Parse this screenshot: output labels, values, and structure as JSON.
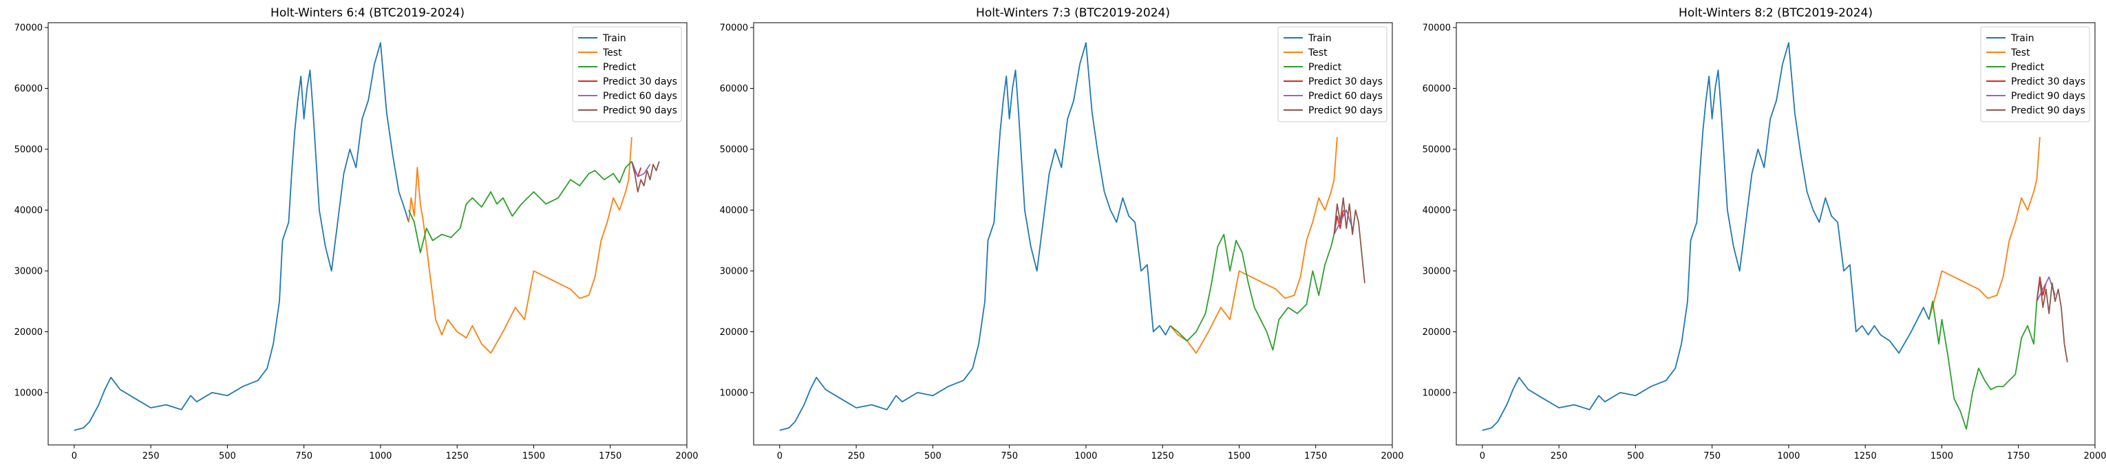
{
  "chart_data": [
    {
      "type": "line",
      "title": "Holt-Winters 6:4 (BTC2019-2024)",
      "xlim": [
        -85,
        2000
      ],
      "ylim": [
        1400,
        70800
      ],
      "xticks": [
        0,
        250,
        500,
        750,
        1000,
        1250,
        1500,
        1750,
        2000
      ],
      "yticks": [
        10000,
        20000,
        30000,
        40000,
        50000,
        60000,
        70000
      ],
      "legend_position": "top-right",
      "series": [
        {
          "name": "Train",
          "color": "#1f77b4",
          "x": [
            0,
            30,
            50,
            80,
            100,
            120,
            150,
            200,
            250,
            300,
            350,
            380,
            400,
            450,
            500,
            550,
            600,
            630,
            650,
            670,
            680,
            700,
            710,
            720,
            730,
            740,
            750,
            760,
            770,
            780,
            800,
            820,
            840,
            860,
            880,
            900,
            920,
            940,
            960,
            980,
            1000,
            1020,
            1040,
            1060,
            1080,
            1092
          ],
          "y": [
            3800,
            4200,
            5200,
            8000,
            10500,
            12500,
            10500,
            9000,
            7500,
            8000,
            7200,
            9500,
            8500,
            10000,
            9500,
            11000,
            12000,
            14000,
            18000,
            25000,
            35000,
            38000,
            46000,
            53000,
            58000,
            62000,
            55000,
            60000,
            63000,
            56000,
            40000,
            34000,
            30000,
            38000,
            46000,
            50000,
            47000,
            55000,
            58000,
            64000,
            67500,
            56000,
            49000,
            43000,
            40000,
            38000
          ]
        },
        {
          "name": "Test",
          "color": "#ff7f0e",
          "x": [
            1092,
            1100,
            1110,
            1120,
            1130,
            1140,
            1160,
            1180,
            1200,
            1220,
            1250,
            1280,
            1300,
            1330,
            1360,
            1400,
            1440,
            1470,
            1500,
            1540,
            1580,
            1620,
            1650,
            1680,
            1700,
            1720,
            1740,
            1760,
            1780,
            1800,
            1810,
            1820
          ],
          "y": [
            38000,
            42000,
            39000,
            47000,
            41000,
            38000,
            30000,
            22000,
            19500,
            22000,
            20000,
            19000,
            21000,
            18000,
            16500,
            20000,
            24000,
            22000,
            30000,
            29000,
            28000,
            27000,
            25500,
            26000,
            29000,
            35000,
            38000,
            42000,
            40000,
            43000,
            45000,
            52000
          ]
        },
        {
          "name": "Predict",
          "color": "#2ca02c",
          "x": [
            1092,
            1110,
            1130,
            1150,
            1170,
            1200,
            1230,
            1260,
            1280,
            1300,
            1330,
            1360,
            1380,
            1400,
            1430,
            1460,
            1500,
            1540,
            1580,
            1620,
            1650,
            1680,
            1700,
            1730,
            1760,
            1780,
            1800,
            1820
          ],
          "y": [
            40000,
            38000,
            33000,
            37000,
            35000,
            36000,
            35500,
            37000,
            41000,
            42000,
            40500,
            43000,
            41000,
            42000,
            39000,
            41000,
            43000,
            41000,
            42000,
            45000,
            44000,
            46000,
            46500,
            45000,
            46000,
            44500,
            47000,
            48000
          ]
        },
        {
          "name": "Predict 30 days",
          "color": "#d62728",
          "x": [
            1820,
            1830,
            1840,
            1850
          ],
          "y": [
            48000,
            46500,
            45500,
            47000
          ]
        },
        {
          "name": "Predict 60 days",
          "color": "#9467bd",
          "x": [
            1820,
            1840,
            1860,
            1880
          ],
          "y": [
            48000,
            45500,
            46000,
            47500
          ]
        },
        {
          "name": "Predict 90 days",
          "color": "#8c564b",
          "x": [
            1820,
            1830,
            1840,
            1850,
            1860,
            1870,
            1880,
            1890,
            1900,
            1910
          ],
          "y": [
            48000,
            46000,
            43000,
            45000,
            44000,
            46500,
            45000,
            47500,
            46500,
            48000
          ]
        }
      ]
    },
    {
      "type": "line",
      "title": "Holt-Winters 7:3 (BTC2019-2024)",
      "xlim": [
        -85,
        2000
      ],
      "ylim": [
        1400,
        70800
      ],
      "xticks": [
        0,
        250,
        500,
        750,
        1000,
        1250,
        1500,
        1750,
        2000
      ],
      "yticks": [
        10000,
        20000,
        30000,
        40000,
        50000,
        60000,
        70000
      ],
      "legend_position": "top-right",
      "series": [
        {
          "name": "Train",
          "color": "#1f77b4",
          "x": [
            0,
            30,
            50,
            80,
            100,
            120,
            150,
            200,
            250,
            300,
            350,
            380,
            400,
            450,
            500,
            550,
            600,
            630,
            650,
            670,
            680,
            700,
            710,
            720,
            730,
            740,
            750,
            760,
            770,
            780,
            800,
            820,
            840,
            860,
            880,
            900,
            920,
            940,
            960,
            980,
            1000,
            1020,
            1040,
            1060,
            1080,
            1100,
            1120,
            1140,
            1160,
            1180,
            1200,
            1220,
            1240,
            1260,
            1275
          ],
          "y": [
            3800,
            4200,
            5200,
            8000,
            10500,
            12500,
            10500,
            9000,
            7500,
            8000,
            7200,
            9500,
            8500,
            10000,
            9500,
            11000,
            12000,
            14000,
            18000,
            25000,
            35000,
            38000,
            46000,
            53000,
            58000,
            62000,
            55000,
            60000,
            63000,
            56000,
            40000,
            34000,
            30000,
            38000,
            46000,
            50000,
            47000,
            55000,
            58000,
            64000,
            67500,
            56000,
            49000,
            43000,
            40000,
            38000,
            42000,
            39000,
            38000,
            30000,
            31000,
            20000,
            21000,
            19500,
            21000
          ]
        },
        {
          "name": "Test",
          "color": "#ff7f0e",
          "x": [
            1275,
            1300,
            1330,
            1360,
            1400,
            1440,
            1470,
            1500,
            1540,
            1580,
            1620,
            1650,
            1680,
            1700,
            1720,
            1740,
            1760,
            1780,
            1800,
            1810,
            1820
          ],
          "y": [
            21000,
            19500,
            18500,
            16500,
            20000,
            24000,
            22000,
            30000,
            29000,
            28000,
            27000,
            25500,
            26000,
            29000,
            35000,
            38000,
            42000,
            40000,
            43000,
            45000,
            52000
          ]
        },
        {
          "name": "Predict",
          "color": "#2ca02c",
          "x": [
            1275,
            1300,
            1330,
            1360,
            1390,
            1410,
            1430,
            1450,
            1470,
            1490,
            1510,
            1530,
            1550,
            1570,
            1590,
            1610,
            1630,
            1660,
            1690,
            1720,
            1740,
            1760,
            1780,
            1800,
            1810
          ],
          "y": [
            21000,
            20000,
            18500,
            20000,
            23000,
            28000,
            34000,
            36000,
            30000,
            35000,
            33000,
            28000,
            24000,
            22000,
            20000,
            17000,
            22000,
            24000,
            23000,
            24500,
            30000,
            26000,
            31000,
            34000,
            36000
          ]
        },
        {
          "name": "Predict 30 days",
          "color": "#d62728",
          "x": [
            1810,
            1820,
            1830,
            1840
          ],
          "y": [
            36000,
            39000,
            37000,
            40000
          ]
        },
        {
          "name": "Predict 60 days",
          "color": "#9467bd",
          "x": [
            1810,
            1830,
            1850,
            1870
          ],
          "y": [
            36000,
            38000,
            40000,
            37000
          ]
        },
        {
          "name": "Predict 90 days",
          "color": "#8c564b",
          "x": [
            1810,
            1820,
            1830,
            1840,
            1850,
            1860,
            1870,
            1880,
            1890,
            1900,
            1910
          ],
          "y": [
            36000,
            41000,
            38000,
            42000,
            37000,
            41000,
            36000,
            40000,
            38000,
            33000,
            28000
          ]
        }
      ]
    },
    {
      "type": "line",
      "title": "Holt-Winters 8:2 (BTC2019-2024)",
      "xlim": [
        -85,
        2000
      ],
      "ylim": [
        1400,
        70800
      ],
      "xticks": [
        0,
        250,
        500,
        750,
        1000,
        1250,
        1500,
        1750,
        2000
      ],
      "yticks": [
        10000,
        20000,
        30000,
        40000,
        50000,
        60000,
        70000
      ],
      "legend_position": "top-right",
      "series": [
        {
          "name": "Train",
          "color": "#1f77b4",
          "x": [
            0,
            30,
            50,
            80,
            100,
            120,
            150,
            200,
            250,
            300,
            350,
            380,
            400,
            450,
            500,
            550,
            600,
            630,
            650,
            670,
            680,
            700,
            710,
            720,
            730,
            740,
            750,
            760,
            770,
            780,
            800,
            820,
            840,
            860,
            880,
            900,
            920,
            940,
            960,
            980,
            1000,
            1020,
            1040,
            1060,
            1080,
            1100,
            1120,
            1140,
            1160,
            1180,
            1200,
            1220,
            1240,
            1260,
            1280,
            1300,
            1330,
            1360,
            1400,
            1440,
            1458
          ],
          "y": [
            3800,
            4200,
            5200,
            8000,
            10500,
            12500,
            10500,
            9000,
            7500,
            8000,
            7200,
            9500,
            8500,
            10000,
            9500,
            11000,
            12000,
            14000,
            18000,
            25000,
            35000,
            38000,
            46000,
            53000,
            58000,
            62000,
            55000,
            60000,
            63000,
            56000,
            40000,
            34000,
            30000,
            38000,
            46000,
            50000,
            47000,
            55000,
            58000,
            64000,
            67500,
            56000,
            49000,
            43000,
            40000,
            38000,
            42000,
            39000,
            38000,
            30000,
            31000,
            20000,
            21000,
            19500,
            21000,
            19500,
            18500,
            16500,
            20000,
            24000,
            22000
          ]
        },
        {
          "name": "Test",
          "color": "#ff7f0e",
          "x": [
            1458,
            1480,
            1500,
            1540,
            1580,
            1620,
            1650,
            1680,
            1700,
            1720,
            1740,
            1760,
            1780,
            1800,
            1810,
            1820
          ],
          "y": [
            22000,
            26000,
            30000,
            29000,
            28000,
            27000,
            25500,
            26000,
            29000,
            35000,
            38000,
            42000,
            40000,
            43000,
            45000,
            52000
          ]
        },
        {
          "name": "Predict",
          "color": "#2ca02c",
          "x": [
            1458,
            1470,
            1490,
            1500,
            1520,
            1540,
            1560,
            1580,
            1600,
            1620,
            1640,
            1660,
            1680,
            1700,
            1720,
            1740,
            1760,
            1780,
            1800,
            1810
          ],
          "y": [
            22000,
            25000,
            18000,
            22000,
            16000,
            9000,
            7000,
            4000,
            10000,
            14000,
            12000,
            10500,
            11000,
            11000,
            12000,
            13000,
            19000,
            21000,
            18000,
            25000
          ]
        },
        {
          "name": "Predict 30 days",
          "color": "#d62728",
          "x": [
            1810,
            1820,
            1830,
            1840
          ],
          "y": [
            25000,
            29000,
            26000,
            28000
          ]
        },
        {
          "name": "Predict 90 days",
          "color": "#9467bd",
          "x": [
            1810,
            1830,
            1850,
            1870
          ],
          "y": [
            25000,
            27000,
            29000,
            26000
          ]
        },
        {
          "name": "Predict 90 days",
          "color": "#8c564b",
          "x": [
            1810,
            1820,
            1830,
            1840,
            1850,
            1860,
            1870,
            1880,
            1890,
            1900,
            1910
          ],
          "y": [
            25000,
            28500,
            24000,
            27000,
            23000,
            28000,
            25000,
            27000,
            24000,
            18000,
            15000
          ]
        }
      ]
    }
  ]
}
